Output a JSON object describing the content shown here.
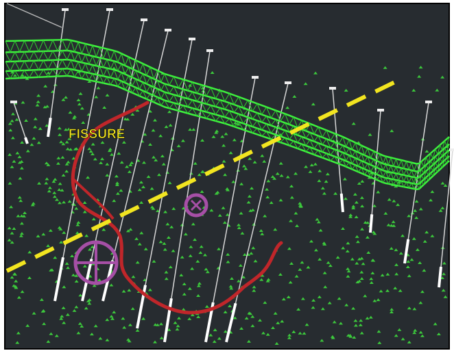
{
  "annotations": {
    "fissure_label": "FISSURE"
  }
}
